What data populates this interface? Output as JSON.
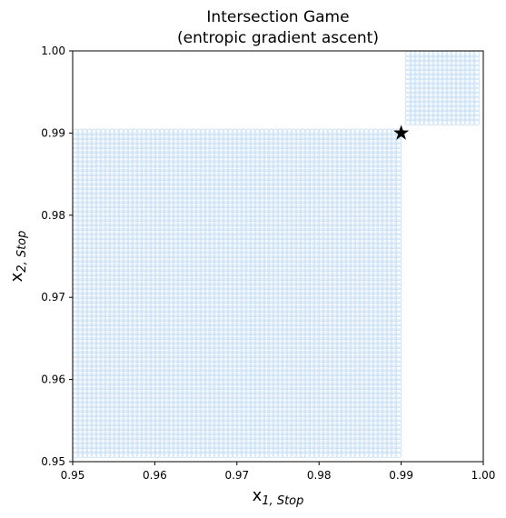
{
  "chart_data": {
    "type": "scatter",
    "title_line1": "Intersection Game",
    "title_line2": "(entropic gradient ascent)",
    "xlabel_main": "x",
    "xlabel_sub": "1, Stop",
    "ylabel_main": "x",
    "ylabel_sub": "2, Stop",
    "xlim": [
      0.95,
      1.0
    ],
    "ylim": [
      0.95,
      1.0
    ],
    "xticks": [
      "0.95",
      "0.96",
      "0.97",
      "0.98",
      "0.99",
      "1.00"
    ],
    "yticks": [
      "0.95",
      "0.96",
      "0.97",
      "0.98",
      "0.99",
      "1.00"
    ],
    "regions": [
      {
        "name": "",
        "x_range": [
          0.95,
          0.9905
        ],
        "y_range": [
          0.95,
          0.9905
        ],
        "color": "#cfe3f5"
      },
      {
        "name": "",
        "x_range": [
          0.9905,
          1.0
        ],
        "y_range": [
          0.9905,
          1.0
        ],
        "color": "#cfe3f5"
      }
    ],
    "marker": {
      "x": 0.99,
      "y": 0.99,
      "symbol": "star",
      "color": "#000000"
    },
    "grid": false
  }
}
